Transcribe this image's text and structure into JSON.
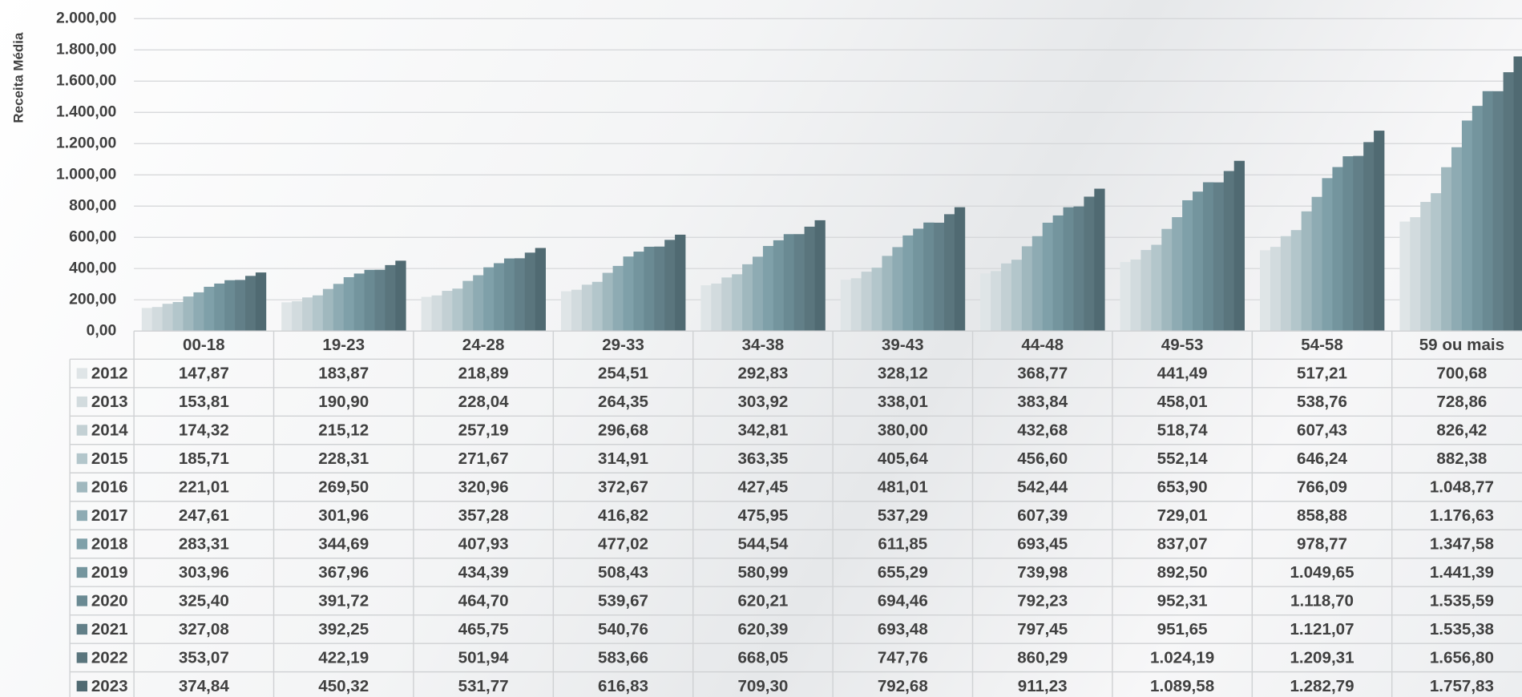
{
  "chart_data": {
    "type": "bar",
    "y_label": "Receita Média",
    "categories": [
      "00-18",
      "19-23",
      "24-28",
      "29-33",
      "34-38",
      "39-43",
      "44-48",
      "49-53",
      "54-58",
      "59 ou mais"
    ],
    "ylim": [
      0,
      2000
    ],
    "yticks": [
      {
        "value": 0,
        "label": "0,00"
      },
      {
        "value": 200,
        "label": "200,00"
      },
      {
        "value": 400,
        "label": "400,00"
      },
      {
        "value": 600,
        "label": "600,00"
      },
      {
        "value": 800,
        "label": "800,00"
      },
      {
        "value": 1000,
        "label": "1.000,00"
      },
      {
        "value": 1200,
        "label": "1.200,00"
      },
      {
        "value": 1400,
        "label": "1.400,00"
      },
      {
        "value": 1600,
        "label": "1.600,00"
      },
      {
        "value": 1800,
        "label": "1.800,00"
      },
      {
        "value": 2000,
        "label": "2.000,00"
      }
    ],
    "grid": true,
    "series": [
      {
        "name": "2012",
        "color": "#dfe5e7",
        "values": [
          147.87,
          183.87,
          218.89,
          254.51,
          292.83,
          328.12,
          368.77,
          441.49,
          517.21,
          700.68
        ],
        "value_labels": [
          "147,87",
          "183,87",
          "218,89",
          "254,51",
          "292,83",
          "328,12",
          "368,77",
          "441,49",
          "517,21",
          "700,68"
        ]
      },
      {
        "name": "2013",
        "color": "#d2dbde",
        "values": [
          153.81,
          190.9,
          228.04,
          264.35,
          303.92,
          338.01,
          383.84,
          458.01,
          538.76,
          728.86
        ],
        "value_labels": [
          "153,81",
          "190,90",
          "228,04",
          "264,35",
          "303,92",
          "338,01",
          "383,84",
          "458,01",
          "538,76",
          "728,86"
        ]
      },
      {
        "name": "2014",
        "color": "#c3d0d4",
        "values": [
          174.32,
          215.12,
          257.19,
          296.68,
          342.81,
          380.0,
          432.68,
          518.74,
          607.43,
          826.42
        ],
        "value_labels": [
          "174,32",
          "215,12",
          "257,19",
          "296,68",
          "342,81",
          "380,00",
          "432,68",
          "518,74",
          "607,43",
          "826,42"
        ]
      },
      {
        "name": "2015",
        "color": "#b3c6cb",
        "values": [
          185.71,
          228.31,
          271.67,
          314.91,
          363.35,
          405.64,
          456.6,
          552.14,
          646.24,
          882.38
        ],
        "value_labels": [
          "185,71",
          "228,31",
          "271,67",
          "314,91",
          "363,35",
          "405,64",
          "456,60",
          "552,14",
          "646,24",
          "882,38"
        ]
      },
      {
        "name": "2016",
        "color": "#a0b8be",
        "values": [
          221.01,
          269.5,
          320.96,
          372.67,
          427.45,
          481.01,
          542.44,
          653.9,
          766.09,
          1048.77
        ],
        "value_labels": [
          "221,01",
          "269,50",
          "320,96",
          "372,67",
          "427,45",
          "481,01",
          "542,44",
          "653,90",
          "766,09",
          "1.048,77"
        ]
      },
      {
        "name": "2017",
        "color": "#8eabb3",
        "values": [
          247.61,
          301.96,
          357.28,
          416.82,
          475.95,
          537.29,
          607.39,
          729.01,
          858.88,
          1176.63
        ],
        "value_labels": [
          "247,61",
          "301,96",
          "357,28",
          "416,82",
          "475,95",
          "537,29",
          "607,39",
          "729,01",
          "858,88",
          "1.176,63"
        ]
      },
      {
        "name": "2018",
        "color": "#7fa0a9",
        "values": [
          283.31,
          344.69,
          407.93,
          477.02,
          544.54,
          611.85,
          693.45,
          837.07,
          978.77,
          1347.58
        ],
        "value_labels": [
          "283,31",
          "344,69",
          "407,93",
          "477,02",
          "544,54",
          "611,85",
          "693,45",
          "837,07",
          "978,77",
          "1.347,58"
        ]
      },
      {
        "name": "2019",
        "color": "#74959e",
        "values": [
          303.96,
          367.96,
          434.39,
          508.43,
          580.99,
          655.29,
          739.98,
          892.5,
          1049.65,
          1441.39
        ],
        "value_labels": [
          "303,96",
          "367,96",
          "434,39",
          "508,43",
          "580,99",
          "655,29",
          "739,98",
          "892,50",
          "1.049,65",
          "1.441,39"
        ]
      },
      {
        "name": "2020",
        "color": "#6a8a93",
        "values": [
          325.4,
          391.72,
          464.7,
          539.67,
          620.21,
          694.46,
          792.23,
          952.31,
          1118.7,
          1535.59
        ],
        "value_labels": [
          "325,40",
          "391,72",
          "464,70",
          "539,67",
          "620,21",
          "694,46",
          "792,23",
          "952,31",
          "1.118,70",
          "1.535,59"
        ]
      },
      {
        "name": "2021",
        "color": "#627f88",
        "values": [
          327.08,
          392.25,
          465.75,
          540.76,
          620.39,
          693.48,
          797.45,
          951.65,
          1121.07,
          1535.38
        ],
        "value_labels": [
          "327,08",
          "392,25",
          "465,75",
          "540,76",
          "620,39",
          "693,48",
          "797,45",
          "951,65",
          "1.121,07",
          "1.535,38"
        ]
      },
      {
        "name": "2022",
        "color": "#5a757d",
        "values": [
          353.07,
          422.19,
          501.94,
          583.66,
          668.05,
          747.76,
          860.29,
          1024.19,
          1209.31,
          1656.8
        ],
        "value_labels": [
          "353,07",
          "422,19",
          "501,94",
          "583,66",
          "668,05",
          "747,76",
          "860,29",
          "1.024,19",
          "1.209,31",
          "1.656,80"
        ]
      },
      {
        "name": "2023",
        "color": "#506a72",
        "values": [
          374.84,
          450.32,
          531.77,
          616.83,
          709.3,
          792.68,
          911.23,
          1089.58,
          1282.79,
          1757.83
        ],
        "value_labels": [
          "374,84",
          "450,32",
          "531,77",
          "616,83",
          "709,30",
          "792,68",
          "911,23",
          "1.089,58",
          "1.282,79",
          "1.757,83"
        ]
      }
    ]
  }
}
